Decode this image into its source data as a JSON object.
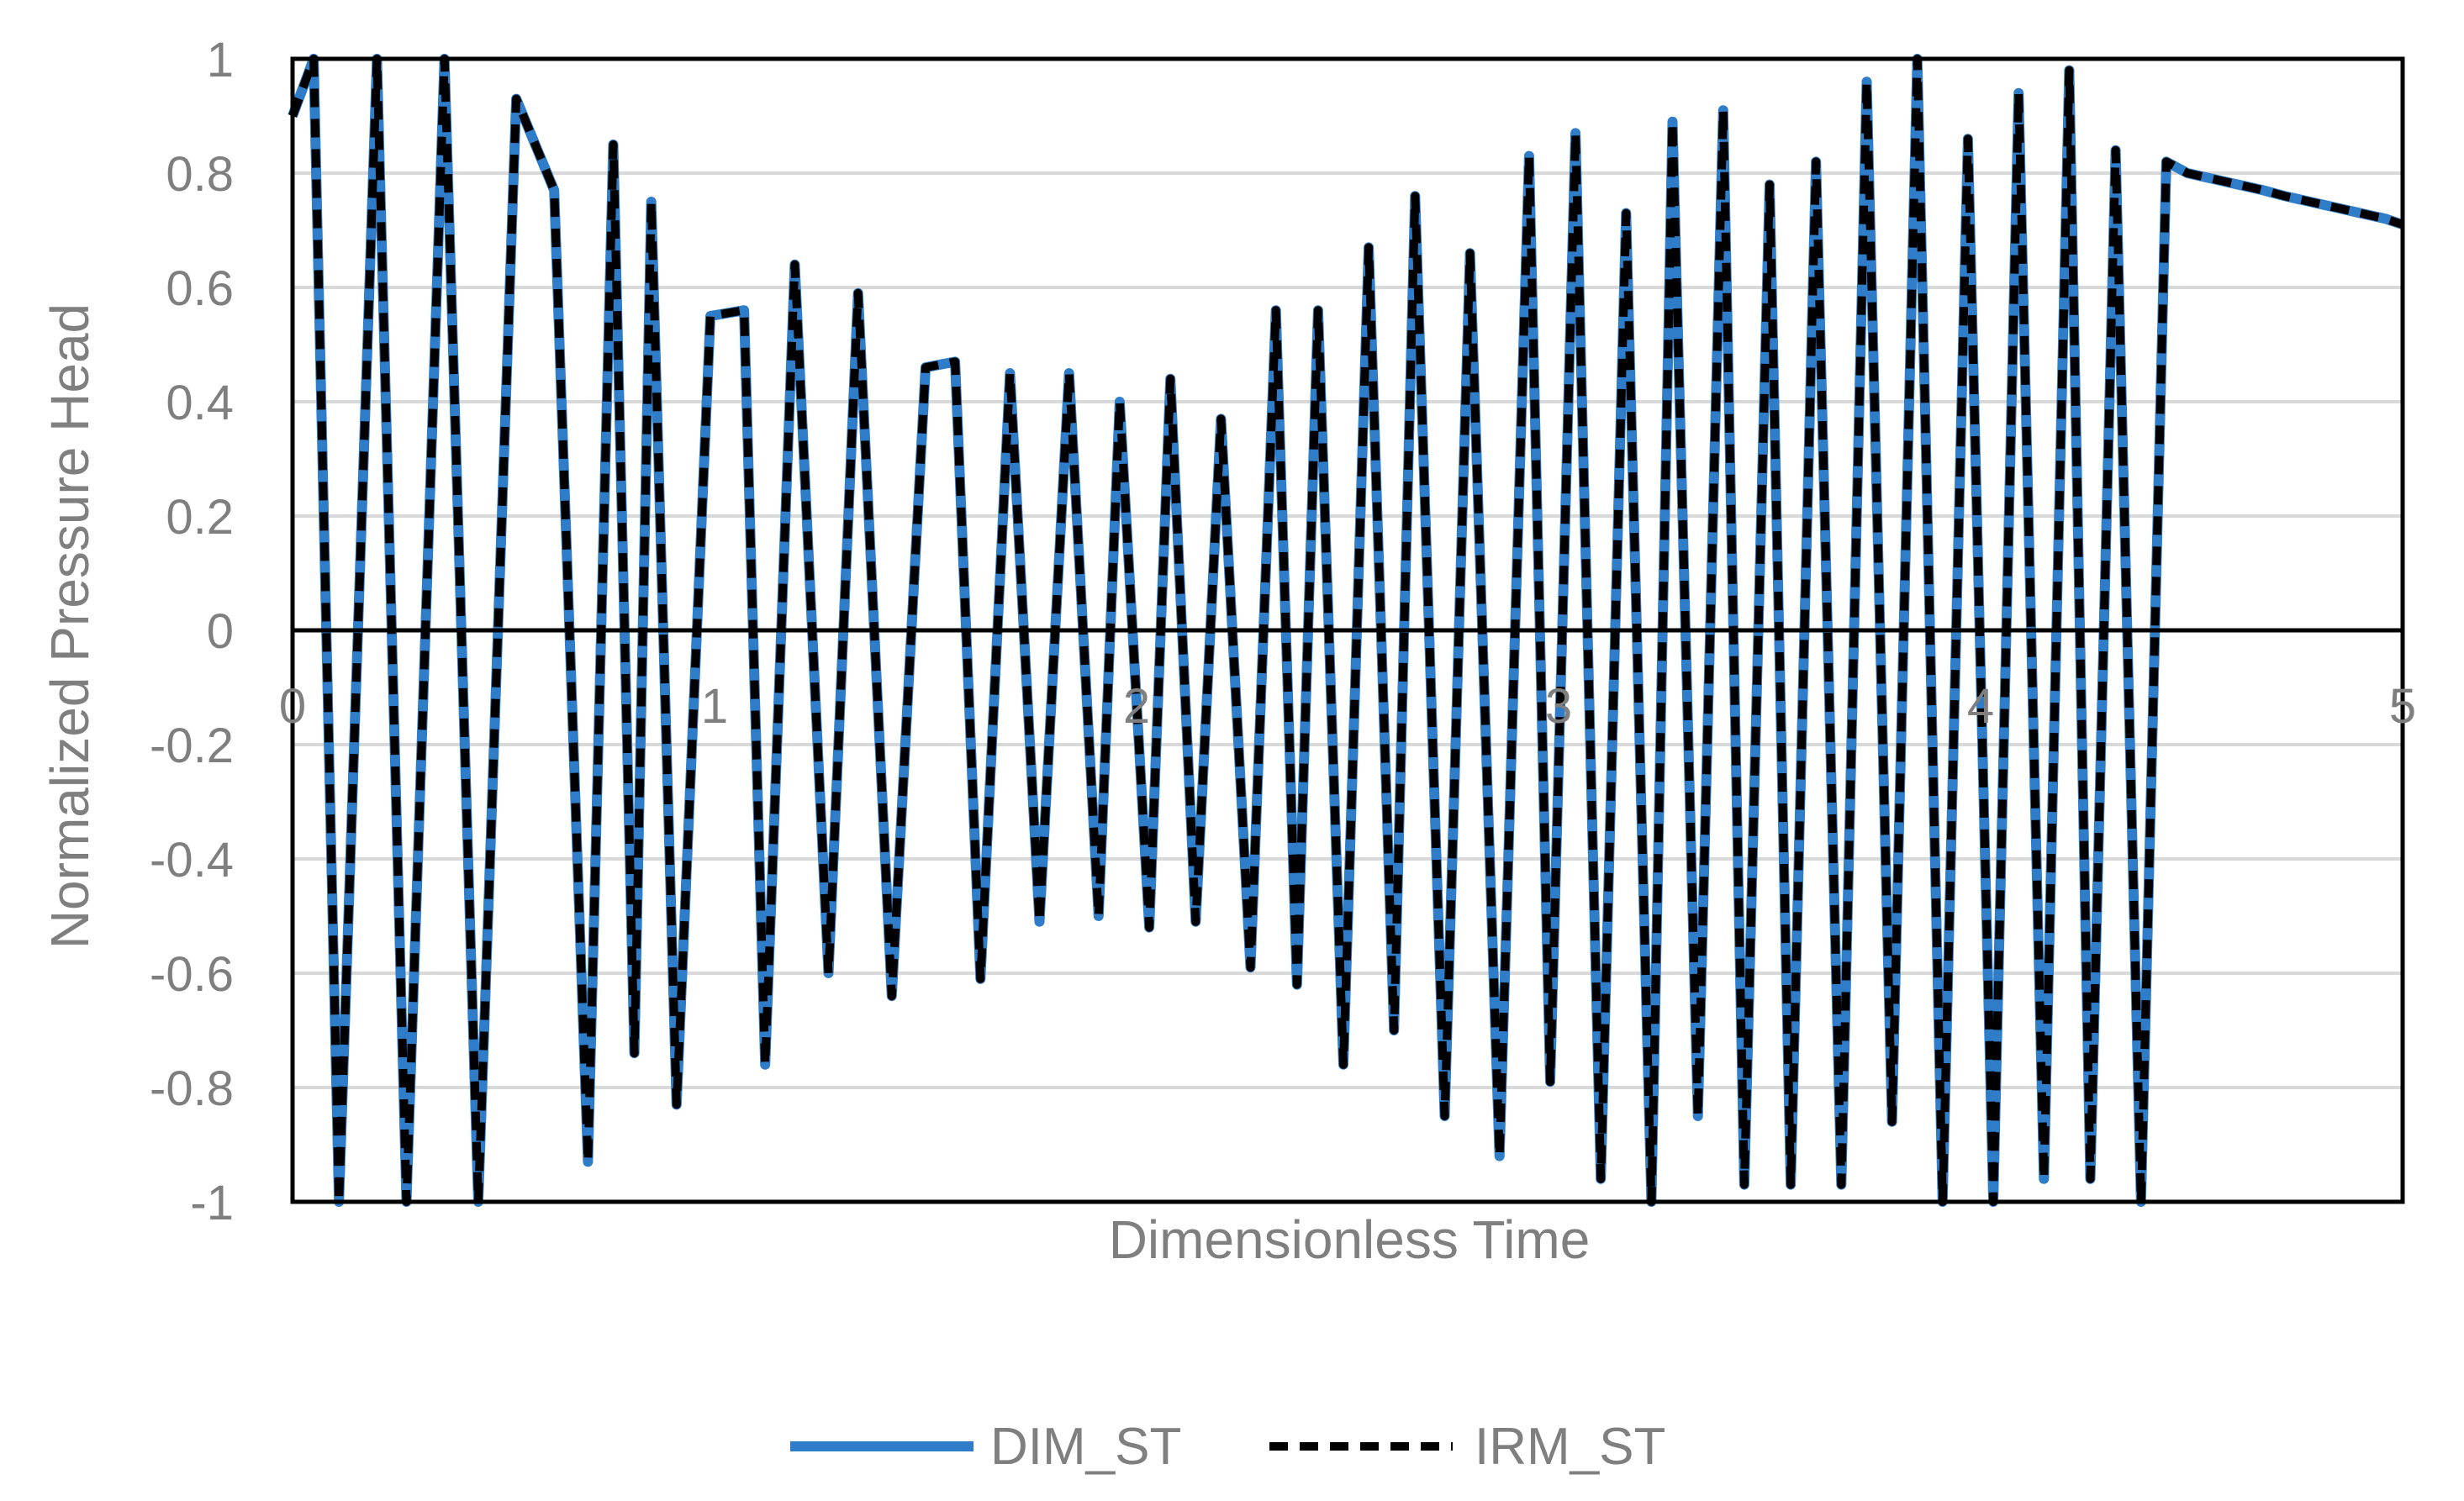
{
  "chart_data": {
    "type": "line",
    "title": "",
    "xlabel": "Dimensionless Time",
    "ylabel": "Normalized Pressure Head",
    "xlim": [
      0,
      5
    ],
    "ylim": [
      -1,
      1
    ],
    "x_ticks": [
      "0",
      "1",
      "2",
      "3",
      "4",
      "5"
    ],
    "y_ticks": [
      "1",
      "0.8",
      "0.6",
      "0.4",
      "0.2",
      "0",
      "-0.2",
      "-0.4",
      "-0.6",
      "-0.8",
      "-1"
    ],
    "grid": "horizontal",
    "legend_position": "bottom",
    "colors": {
      "DIM_ST": "#2f7dc9",
      "IRM_ST": "#000000",
      "grid": "#d9d9d9",
      "text": "#7f7f7f"
    },
    "series": [
      {
        "name": "DIM_ST",
        "style": "solid",
        "x": [
          0.0,
          0.05,
          0.11,
          0.2,
          0.27,
          0.36,
          0.44,
          0.53,
          0.62,
          0.7,
          0.76,
          0.81,
          0.85,
          0.91,
          0.99,
          1.07,
          1.12,
          1.19,
          1.27,
          1.34,
          1.42,
          1.5,
          1.57,
          1.63,
          1.7,
          1.77,
          1.84,
          1.91,
          1.96,
          2.03,
          2.08,
          2.14,
          2.2,
          2.27,
          2.33,
          2.38,
          2.43,
          2.49,
          2.55,
          2.61,
          2.66,
          2.73,
          2.79,
          2.86,
          2.93,
          2.98,
          3.04,
          3.1,
          3.16,
          3.22,
          3.27,
          3.33,
          3.39,
          3.44,
          3.5,
          3.55,
          3.61,
          3.67,
          3.73,
          3.79,
          3.85,
          3.91,
          3.97,
          4.03,
          4.09,
          4.15,
          4.21,
          4.26,
          4.32,
          4.38,
          4.44,
          4.49,
          4.55,
          4.61,
          4.67,
          4.72,
          4.78,
          4.84,
          4.9,
          4.96,
          5.0
        ],
        "y": [
          0.9,
          1.0,
          -1.0,
          1.0,
          -1.0,
          1.0,
          -1.0,
          0.93,
          0.77,
          -0.93,
          0.85,
          -0.74,
          0.75,
          -0.83,
          0.55,
          0.56,
          -0.76,
          0.64,
          -0.6,
          0.59,
          -0.64,
          0.46,
          0.47,
          -0.61,
          0.45,
          -0.51,
          0.45,
          -0.5,
          0.4,
          -0.52,
          0.44,
          -0.51,
          0.37,
          -0.59,
          0.56,
          -0.62,
          0.56,
          -0.76,
          0.67,
          -0.7,
          0.76,
          -0.85,
          0.66,
          -0.92,
          0.83,
          -0.79,
          0.87,
          -0.96,
          0.73,
          -1.0,
          0.89,
          -0.85,
          0.91,
          -0.97,
          0.78,
          -0.97,
          0.82,
          -0.97,
          0.96,
          -0.86,
          1.0,
          -1.0,
          0.86,
          -1.0,
          0.94,
          -0.96,
          0.98,
          -0.96,
          0.84,
          -1.0,
          0.82,
          0.8,
          0.79,
          0.78,
          0.77,
          0.76,
          0.75,
          0.74,
          0.73,
          0.72,
          0.71
        ]
      },
      {
        "name": "IRM_ST",
        "style": "dashed",
        "x": [
          0.0,
          0.05,
          0.11,
          0.2,
          0.27,
          0.36,
          0.44,
          0.53,
          0.62,
          0.7,
          0.76,
          0.81,
          0.85,
          0.91,
          0.99,
          1.07,
          1.12,
          1.19,
          1.27,
          1.34,
          1.42,
          1.5,
          1.57,
          1.63,
          1.7,
          1.77,
          1.84,
          1.91,
          1.96,
          2.03,
          2.08,
          2.14,
          2.2,
          2.27,
          2.33,
          2.38,
          2.43,
          2.49,
          2.55,
          2.61,
          2.66,
          2.73,
          2.79,
          2.86,
          2.93,
          2.98,
          3.04,
          3.1,
          3.16,
          3.22,
          3.27,
          3.33,
          3.39,
          3.44,
          3.5,
          3.55,
          3.61,
          3.67,
          3.73,
          3.79,
          3.85,
          3.91,
          3.97,
          4.03,
          4.09,
          4.15,
          4.21,
          4.26,
          4.32,
          4.38,
          4.44,
          4.49,
          4.55,
          4.61,
          4.67,
          4.72,
          4.78,
          4.84,
          4.9,
          4.96,
          5.0
        ],
        "y": [
          0.9,
          1.0,
          -1.0,
          1.0,
          -1.0,
          1.0,
          -1.0,
          0.93,
          0.77,
          -0.93,
          0.85,
          -0.74,
          0.75,
          -0.83,
          0.55,
          0.56,
          -0.76,
          0.64,
          -0.6,
          0.59,
          -0.64,
          0.46,
          0.47,
          -0.61,
          0.45,
          -0.51,
          0.45,
          -0.5,
          0.4,
          -0.52,
          0.44,
          -0.51,
          0.37,
          -0.59,
          0.56,
          -0.62,
          0.56,
          -0.76,
          0.67,
          -0.7,
          0.76,
          -0.85,
          0.66,
          -0.92,
          0.83,
          -0.79,
          0.87,
          -0.96,
          0.73,
          -1.0,
          0.89,
          -0.85,
          0.91,
          -0.97,
          0.78,
          -0.97,
          0.82,
          -0.97,
          0.96,
          -0.86,
          1.0,
          -1.0,
          0.86,
          -1.0,
          0.94,
          -0.96,
          0.98,
          -0.96,
          0.84,
          -1.0,
          0.82,
          0.8,
          0.79,
          0.78,
          0.77,
          0.76,
          0.75,
          0.74,
          0.73,
          0.72,
          0.71
        ]
      }
    ]
  }
}
